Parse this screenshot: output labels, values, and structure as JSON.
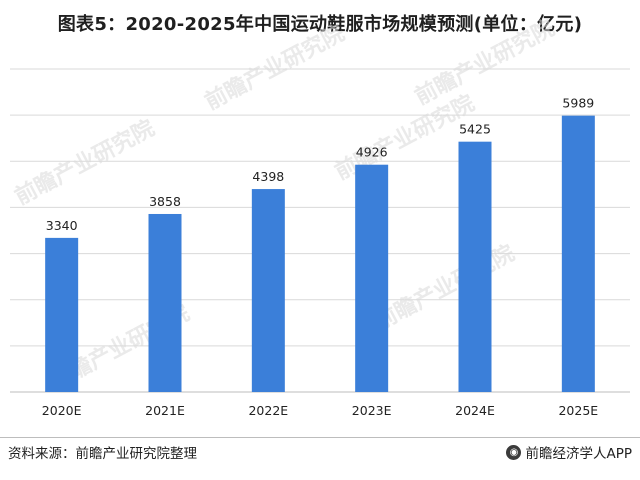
{
  "title": "图表5：2020-2025年中国运动鞋服市场规模预测(单位：亿元)",
  "source": "资料来源：前瞻产业研究院整理",
  "brand": "前瞻经济学人APP",
  "watermark": "前瞻产业研究院",
  "chart_data": {
    "type": "bar",
    "categories": [
      "2020E",
      "2021E",
      "2022E",
      "2023E",
      "2024E",
      "2025E"
    ],
    "values": [
      3340,
      3858,
      4398,
      4926,
      5425,
      5989
    ],
    "ylim": [
      0,
      7000
    ],
    "grid": true,
    "bar_color": "#3b7fd9",
    "title": "",
    "xlabel": "",
    "ylabel": ""
  }
}
